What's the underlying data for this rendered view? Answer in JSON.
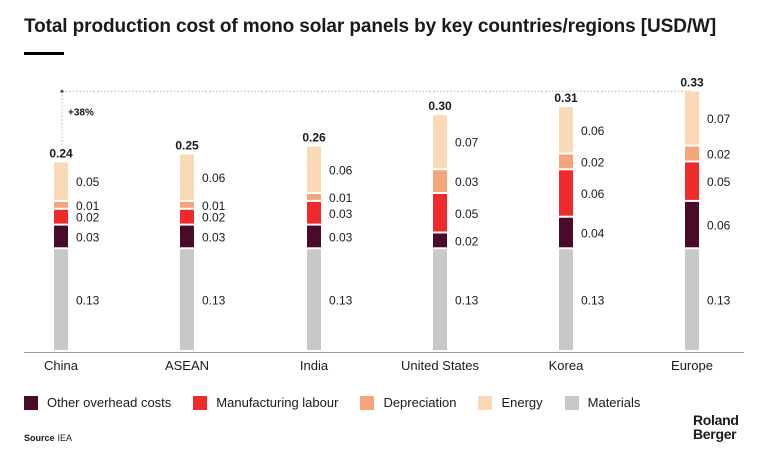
{
  "title": "Total production cost of mono solar panels by key countries/regions [USD/W]",
  "source_label": "Source",
  "source_text": "IEA",
  "logo": {
    "line1": "Roland",
    "line2": "Berger"
  },
  "colors": {
    "other_overhead": "#4a0a2a",
    "manufacturing_labour": "#ee2a2a",
    "depreciation": "#f4a57c",
    "energy": "#f9d9b6",
    "materials": "#c8c8c8",
    "dashed_line": "#b0b0b0"
  },
  "chart_data": {
    "type": "bar",
    "stacked": true,
    "categories": [
      "China",
      "ASEAN",
      "India",
      "United States",
      "Korea",
      "Europe"
    ],
    "series": [
      {
        "name": "Materials",
        "color_key": "materials",
        "values": [
          0.13,
          0.13,
          0.13,
          0.13,
          0.13,
          0.13
        ]
      },
      {
        "name": "Other overhead costs",
        "color_key": "other_overhead",
        "values": [
          0.03,
          0.03,
          0.03,
          0.02,
          0.04,
          0.06
        ]
      },
      {
        "name": "Manufacturing labour",
        "color_key": "manufacturing_labour",
        "values": [
          0.02,
          0.02,
          0.03,
          0.05,
          0.06,
          0.05
        ]
      },
      {
        "name": "Depreciation",
        "color_key": "depreciation",
        "values": [
          0.01,
          0.01,
          0.01,
          0.03,
          0.02,
          0.02
        ]
      },
      {
        "name": "Energy",
        "color_key": "energy",
        "values": [
          0.05,
          0.06,
          0.06,
          0.07,
          0.06,
          0.07
        ]
      }
    ],
    "totals": [
      0.24,
      0.25,
      0.26,
      0.3,
      0.31,
      0.33
    ],
    "annotation": {
      "text": "+38%",
      "from": "China",
      "to": "Europe"
    },
    "ylim": [
      0,
      0.33
    ],
    "grid": false
  },
  "legend": [
    {
      "label": "Other overhead costs",
      "color_key": "other_overhead"
    },
    {
      "label": "Manufacturing labour",
      "color_key": "manufacturing_labour"
    },
    {
      "label": "Depreciation",
      "color_key": "depreciation"
    },
    {
      "label": "Energy",
      "color_key": "energy"
    },
    {
      "label": "Materials",
      "color_key": "materials"
    }
  ]
}
